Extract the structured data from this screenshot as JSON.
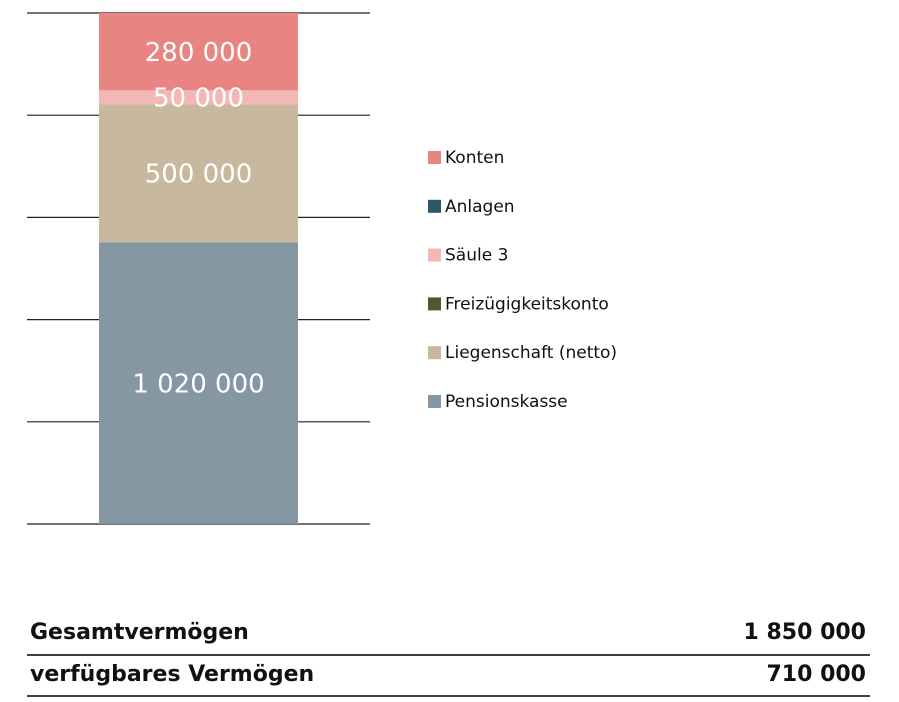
{
  "chart_data": {
    "type": "stacked-bar",
    "categories": [
      null
    ],
    "series": [
      {
        "name": "Konten",
        "color": "#e88482",
        "values": [
          280000
        ],
        "value_labels": [
          "280 000"
        ]
      },
      {
        "name": "Anlagen",
        "color": "#2b5766",
        "values": [
          0
        ]
      },
      {
        "name": "Säule 3",
        "color": "#f3b8b3",
        "values": [
          50000
        ],
        "value_labels": [
          "50 000"
        ]
      },
      {
        "name": "Freizügigkeitskonto",
        "color": "#4b5a2f",
        "values": [
          0
        ]
      },
      {
        "name": "Liegenschaft (netto)",
        "color": "#c8b99e",
        "values": [
          500000
        ],
        "value_labels": [
          "500 000"
        ]
      },
      {
        "name": "Pensionskasse",
        "color": "#8597a3",
        "values": [
          1020000
        ],
        "value_labels": [
          "1 020 000"
        ]
      }
    ],
    "ylim": [
      0,
      1850000
    ],
    "yticks": [
      0,
      370000,
      740000,
      1110000,
      1480000,
      1850000
    ],
    "grid": true
  },
  "table": {
    "rows": [
      [
        "Gesamtvermögen",
        "1 850 000"
      ],
      [
        "verfügbares Vermögen",
        "710 000"
      ]
    ]
  }
}
